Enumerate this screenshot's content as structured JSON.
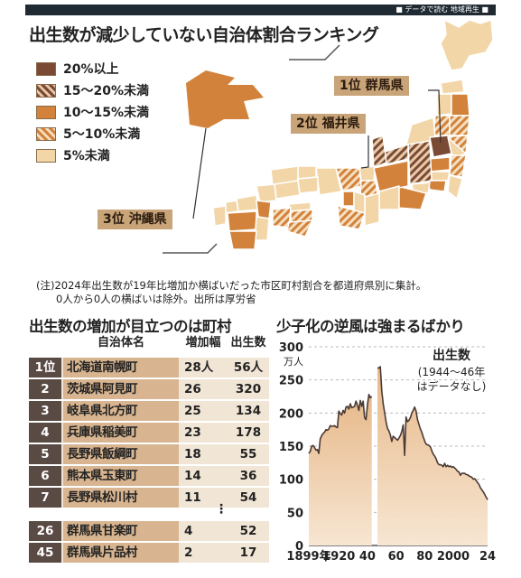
{
  "header": {
    "tag": "■ データで読む 地域再生 ■"
  },
  "map_section": {
    "title": "出生数が減少していない自治体割合ランキング",
    "legend": [
      {
        "label": "20%以上",
        "pattern": "solid",
        "color": "#7a4a34"
      },
      {
        "label": "15～20%未満",
        "pattern": "hatch",
        "color": "#7a4a34"
      },
      {
        "label": "10～15%未満",
        "pattern": "solid",
        "color": "#d2823a"
      },
      {
        "label": "5～10%未満",
        "pattern": "hatch",
        "color": "#d2823a"
      },
      {
        "label": "5%未満",
        "pattern": "solid",
        "color": "#f2d6a8"
      }
    ],
    "callouts": {
      "first": "1位 群馬県",
      "second": "2位 福井県",
      "third": "3位 沖縄県"
    },
    "note_line1": "(注)2024年出生数が19年比増加か横ばいだった市区町村割合を都道府県別に集計。",
    "note_line2": "0人から0人の横ばいは除外。出所は厚労省"
  },
  "table_section": {
    "title": "出生数の増加が目立つのは町村",
    "headers": {
      "name": "自治体名",
      "increase": "増加幅",
      "births": "出生数"
    },
    "rows": [
      {
        "rank": "1位",
        "name": "北海道南幌町",
        "increase": "28人",
        "births": "56人"
      },
      {
        "rank": "2",
        "name": "茨城県阿見町",
        "increase": "26",
        "births": "320"
      },
      {
        "rank": "3",
        "name": "岐阜県北方町",
        "increase": "25",
        "births": "134"
      },
      {
        "rank": "4",
        "name": "兵庫県稲美町",
        "increase": "23",
        "births": "178"
      },
      {
        "rank": "5",
        "name": "長野県飯綱町",
        "increase": "18",
        "births": "55"
      },
      {
        "rank": "6",
        "name": "熊本県玉東町",
        "increase": "14",
        "births": "36"
      },
      {
        "rank": "7",
        "name": "長野県松川村",
        "increase": "11",
        "births": "54"
      },
      {
        "rank": "26",
        "name": "群馬県甘楽町",
        "increase": "4",
        "births": "52"
      },
      {
        "rank": "45",
        "name": "群馬県片品村",
        "increase": "2",
        "births": "17"
      }
    ],
    "ellipsis": "⋮"
  },
  "chart_data": {
    "type": "area",
    "title": "少子化の逆風は強まるばかり",
    "series_label": "出生数",
    "gap_note": "(1944～46年はデータなし)",
    "yunit": "万人",
    "ylim": [
      0,
      300
    ],
    "yticks": [
      0,
      50,
      100,
      150,
      200,
      250,
      300
    ],
    "xlim": [
      1899,
      2024
    ],
    "xtick_labels": [
      {
        "x": 1899,
        "label": "1899年"
      },
      {
        "x": 1920,
        "label": "1920"
      },
      {
        "x": 1940,
        "label": "40"
      },
      {
        "x": 1960,
        "label": "60"
      },
      {
        "x": 1980,
        "label": "80"
      },
      {
        "x": 2000,
        "label": "2000"
      },
      {
        "x": 2024,
        "label": "24"
      }
    ],
    "grid": "horizontal",
    "segments": [
      [
        [
          1899,
          139
        ],
        [
          1900,
          142
        ],
        [
          1901,
          150
        ],
        [
          1902,
          151
        ],
        [
          1903,
          148
        ],
        [
          1904,
          144
        ],
        [
          1905,
          145
        ],
        [
          1906,
          139
        ],
        [
          1907,
          161
        ],
        [
          1908,
          166
        ],
        [
          1909,
          169
        ],
        [
          1910,
          171
        ],
        [
          1911,
          175
        ],
        [
          1912,
          174
        ],
        [
          1913,
          176
        ],
        [
          1914,
          181
        ],
        [
          1915,
          180
        ],
        [
          1916,
          180
        ],
        [
          1917,
          181
        ],
        [
          1918,
          179
        ],
        [
          1919,
          178
        ],
        [
          1920,
          203
        ],
        [
          1921,
          199
        ],
        [
          1922,
          197
        ],
        [
          1923,
          204
        ],
        [
          1924,
          200
        ],
        [
          1925,
          209
        ],
        [
          1926,
          210
        ],
        [
          1927,
          206
        ],
        [
          1928,
          214
        ],
        [
          1929,
          208
        ],
        [
          1930,
          209
        ],
        [
          1931,
          210
        ],
        [
          1932,
          218
        ],
        [
          1933,
          212
        ],
        [
          1934,
          204
        ],
        [
          1935,
          219
        ],
        [
          1936,
          210
        ],
        [
          1937,
          218
        ],
        [
          1938,
          193
        ],
        [
          1939,
          190
        ],
        [
          1940,
          212
        ],
        [
          1941,
          228
        ],
        [
          1942,
          223
        ],
        [
          1943,
          225
        ]
      ],
      [
        [
          1947,
          268
        ],
        [
          1948,
          268
        ],
        [
          1949,
          270
        ],
        [
          1950,
          234
        ],
        [
          1951,
          214
        ],
        [
          1952,
          201
        ],
        [
          1953,
          187
        ],
        [
          1954,
          177
        ],
        [
          1955,
          173
        ],
        [
          1956,
          167
        ],
        [
          1957,
          157
        ],
        [
          1958,
          165
        ],
        [
          1959,
          163
        ],
        [
          1960,
          161
        ],
        [
          1961,
          159
        ],
        [
          1962,
          162
        ],
        [
          1963,
          166
        ],
        [
          1964,
          172
        ],
        [
          1965,
          182
        ],
        [
          1966,
          136
        ],
        [
          1967,
          194
        ],
        [
          1968,
          187
        ],
        [
          1969,
          189
        ],
        [
          1970,
          193
        ],
        [
          1971,
          200
        ],
        [
          1972,
          204
        ],
        [
          1973,
          209
        ],
        [
          1974,
          203
        ],
        [
          1975,
          190
        ],
        [
          1976,
          183
        ],
        [
          1977,
          176
        ],
        [
          1978,
          171
        ],
        [
          1979,
          164
        ],
        [
          1980,
          158
        ],
        [
          1981,
          153
        ],
        [
          1982,
          152
        ],
        [
          1983,
          151
        ],
        [
          1984,
          149
        ],
        [
          1985,
          143
        ],
        [
          1986,
          138
        ],
        [
          1987,
          135
        ],
        [
          1988,
          131
        ],
        [
          1989,
          125
        ],
        [
          1990,
          122
        ],
        [
          1991,
          122
        ],
        [
          1992,
          121
        ],
        [
          1993,
          119
        ],
        [
          1994,
          124
        ],
        [
          1995,
          119
        ],
        [
          1996,
          121
        ],
        [
          1997,
          119
        ],
        [
          1998,
          120
        ],
        [
          1999,
          118
        ],
        [
          2000,
          119
        ],
        [
          2001,
          117
        ],
        [
          2002,
          115
        ],
        [
          2003,
          112
        ],
        [
          2004,
          111
        ],
        [
          2005,
          106
        ],
        [
          2006,
          109
        ],
        [
          2007,
          109
        ],
        [
          2008,
          109
        ],
        [
          2009,
          107
        ],
        [
          2010,
          107
        ],
        [
          2011,
          105
        ],
        [
          2012,
          104
        ],
        [
          2013,
          103
        ],
        [
          2014,
          100
        ],
        [
          2015,
          101
        ],
        [
          2016,
          98
        ],
        [
          2017,
          95
        ],
        [
          2018,
          92
        ],
        [
          2019,
          87
        ],
        [
          2020,
          84
        ],
        [
          2021,
          81
        ],
        [
          2022,
          77
        ],
        [
          2023,
          73
        ],
        [
          2024,
          69
        ]
      ]
    ]
  }
}
